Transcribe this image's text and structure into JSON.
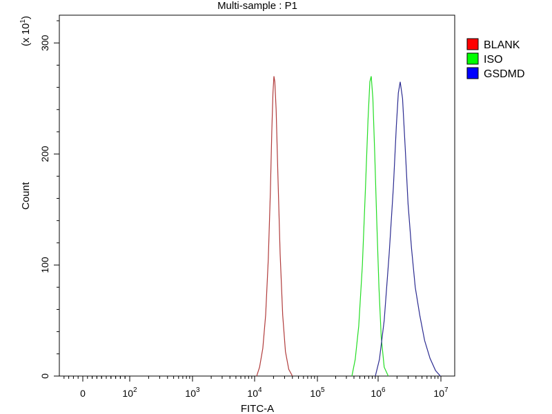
{
  "chart_data": {
    "type": "line",
    "title": "Multi-sample : P1",
    "xlabel": "FITC-A",
    "ylabel": "Count",
    "y_multiplier_base": "(x 10",
    "y_multiplier_exp": "1",
    "y_multiplier_close": ")",
    "x_scale": "biexponential",
    "xlim": [
      -5000,
      10000000
    ],
    "ylim": [
      0,
      32.5
    ],
    "x_ticks": [
      {
        "value": 0,
        "base": "0",
        "exp": ""
      },
      {
        "value": 100,
        "base": "10",
        "exp": "2"
      },
      {
        "value": 1000,
        "base": "10",
        "exp": "3"
      },
      {
        "value": 10000,
        "base": "10",
        "exp": "4"
      },
      {
        "value": 100000,
        "base": "10",
        "exp": "5"
      },
      {
        "value": 1000000,
        "base": "10",
        "exp": "6"
      },
      {
        "value": 10000000,
        "base": "10",
        "exp": "7"
      }
    ],
    "y_ticks": [
      {
        "value": 0,
        "label": "0"
      },
      {
        "value": 10,
        "label": "100"
      },
      {
        "value": 20,
        "label": "200"
      },
      {
        "value": 30,
        "label": "300"
      }
    ],
    "legend_position": "right",
    "series": [
      {
        "name": "BLANK",
        "color": "#b03a3a",
        "legend_color": "#ff0000",
        "points": [
          [
            10800,
            0
          ],
          [
            12000,
            0.8
          ],
          [
            13500,
            2.5
          ],
          [
            15000,
            5.5
          ],
          [
            16500,
            10.5
          ],
          [
            17800,
            16.5
          ],
          [
            18800,
            22
          ],
          [
            19600,
            25.5
          ],
          [
            20300,
            27
          ],
          [
            21000,
            26.5
          ],
          [
            22000,
            24
          ],
          [
            23500,
            18
          ],
          [
            25500,
            11
          ],
          [
            28000,
            5.5
          ],
          [
            31000,
            2.2
          ],
          [
            35000,
            0.6
          ],
          [
            40000,
            0
          ]
        ]
      },
      {
        "name": "ISO",
        "color": "#22dd22",
        "legend_color": "#00ff00",
        "points": [
          [
            370000,
            0
          ],
          [
            420000,
            1.5
          ],
          [
            480000,
            4.5
          ],
          [
            550000,
            10
          ],
          [
            620000,
            17
          ],
          [
            680000,
            23
          ],
          [
            730000,
            26.5
          ],
          [
            770000,
            27
          ],
          [
            820000,
            25
          ],
          [
            880000,
            20
          ],
          [
            950000,
            14
          ],
          [
            1030000,
            8
          ],
          [
            1120000,
            3.5
          ],
          [
            1250000,
            0.8
          ],
          [
            1450000,
            0
          ]
        ]
      },
      {
        "name": "GSDMD",
        "color": "#2a2a90",
        "legend_color": "#0000ff",
        "points": [
          [
            900000,
            0
          ],
          [
            1050000,
            1.5
          ],
          [
            1250000,
            5
          ],
          [
            1500000,
            11
          ],
          [
            1750000,
            17
          ],
          [
            1950000,
            22.5
          ],
          [
            2100000,
            25.5
          ],
          [
            2250000,
            26.5
          ],
          [
            2450000,
            25
          ],
          [
            2700000,
            20.5
          ],
          [
            3000000,
            15.5
          ],
          [
            3400000,
            11.5
          ],
          [
            3900000,
            8
          ],
          [
            4600000,
            5.5
          ],
          [
            5500000,
            3.2
          ],
          [
            6700000,
            1.6
          ],
          [
            8200000,
            0.5
          ],
          [
            9800000,
            0
          ]
        ]
      }
    ]
  }
}
